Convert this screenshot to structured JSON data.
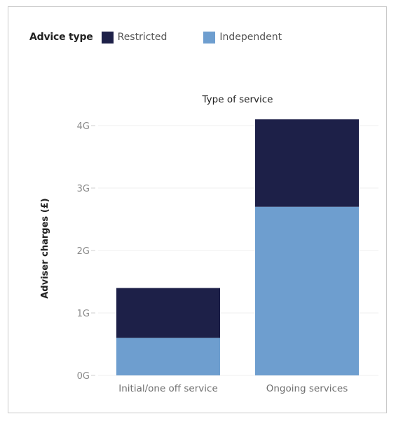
{
  "legend": {
    "title": "Advice type",
    "items": [
      {
        "label": "Restricted",
        "color": "#1d2048"
      },
      {
        "label": "Independent",
        "color": "#6e9ecf"
      }
    ]
  },
  "chart_data": {
    "type": "bar",
    "stacked": true,
    "title": "Type of service",
    "xlabel": "",
    "ylabel": "Adviser charges (£)",
    "categories": [
      "Initial/one off service",
      "Ongoing services"
    ],
    "series": [
      {
        "name": "Independent",
        "color": "#6e9ecf",
        "values": [
          0.6,
          2.7
        ]
      },
      {
        "name": "Restricted",
        "color": "#1d2048",
        "values": [
          0.8,
          1.4
        ]
      }
    ],
    "yticks": [
      {
        "value": 0,
        "label": "0G"
      },
      {
        "value": 1,
        "label": "1G"
      },
      {
        "value": 2,
        "label": "2G"
      },
      {
        "value": 3,
        "label": "3G"
      },
      {
        "value": 4,
        "label": "4G"
      }
    ],
    "ylim": [
      0,
      4.2
    ],
    "grid": true,
    "legend_position": "top-left"
  }
}
